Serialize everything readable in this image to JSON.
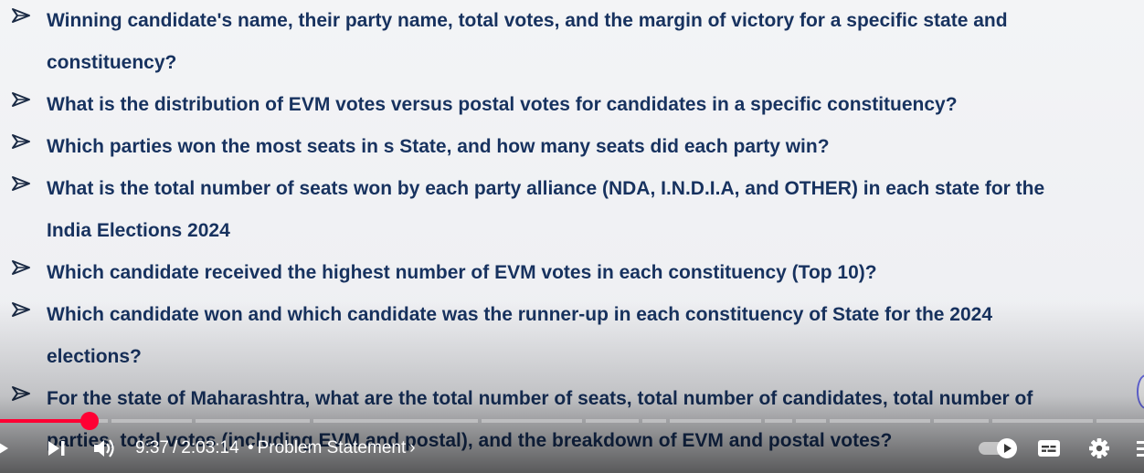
{
  "slide": {
    "bullets": [
      {
        "text": "Winning candidate's name, their party name, total votes, and the margin of victory for a specific state and",
        "cont": "constituency?"
      },
      {
        "text": "What is the distribution of EVM votes versus postal votes for candidates in a specific constituency?"
      },
      {
        "text": "Which parties won the most seats in s State, and how many seats did each party win?"
      },
      {
        "text": "What is the total number of seats won by each party alliance (NDA, I.N.D.I.A, and OTHER) in each state for the",
        "cont": "India Elections 2024"
      },
      {
        "text": "Which candidate received the highest number of EVM votes in each constituency (Top 10)?"
      },
      {
        "text": "Which candidate won and which candidate was the runner-up in each constituency of State for the 2024",
        "cont": "elections?"
      },
      {
        "text": "For the state of Maharashtra, what are the total number of seats, total number of candidates, total number of",
        "cont": "parties, total votes (including EVM and postal), and the breakdown of EVM and postal votes?"
      }
    ],
    "text_color": "#17325f",
    "background": "#f2f3f5"
  },
  "player": {
    "current_time": "9:37",
    "separator": "/",
    "duration": "2:03:14",
    "dot": "•",
    "chapter": "Problem Statement",
    "chapter_arrow": "›",
    "progress_fraction": 0.078,
    "accent": "#ff0033",
    "controls": [
      {
        "name": "play-icon"
      },
      {
        "name": "next-icon"
      },
      {
        "name": "volume-icon"
      },
      {
        "name": "autoplay-toggle-icon"
      },
      {
        "name": "captions-icon"
      },
      {
        "name": "settings-gear-icon"
      },
      {
        "name": "miniplayer-icon"
      }
    ]
  }
}
